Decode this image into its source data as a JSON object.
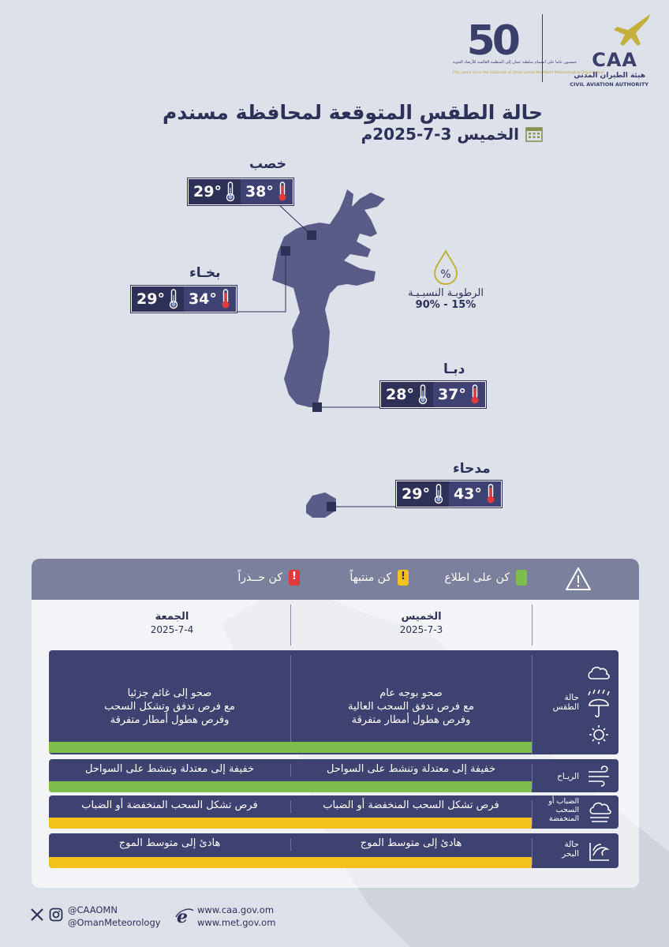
{
  "header": {
    "caa_word": "CAA",
    "caa_arabic": "هيئة الطيران المدني",
    "caa_english": "CIVIL AVIATION AUTHORITY",
    "fifty_number": "50",
    "fifty_arabic": "خمسون عاما على انضمام سلطنة عمان إلى المنظمة العالمية للأرصاد الجوية",
    "fifty_english": "Fifty years since the Sultanate of Oman joined the World Meteorological Organization"
  },
  "title": "حالة الطقس المتوقعة لمحافظة مسندم",
  "date": "الخميس 3-7-2025م",
  "cities": [
    {
      "name": "خصب",
      "max": "38°",
      "min": "29°"
    },
    {
      "name": "بخـاء",
      "max": "34°",
      "min": "29°"
    },
    {
      "name": "دبـا",
      "max": "37°",
      "min": "28°"
    },
    {
      "name": "مدحاء",
      "max": "43°",
      "min": "29°"
    }
  ],
  "humidity": {
    "symbol": "%",
    "label": "الرطوبـة النسبـيـة",
    "value": "90% - 15%"
  },
  "legend": {
    "aware": "كن على اطلاع",
    "alert": "كن منتبهاً",
    "caution": "كن حــذراً"
  },
  "days": [
    {
      "name": "الخميس",
      "date": "2025-7-3"
    },
    {
      "name": "الجمعة",
      "date": "2025-7-4"
    }
  ],
  "rows": {
    "weather": {
      "label": "حالة الطقس",
      "thu": [
        "صحو بوجه عام",
        "مع فرص تدفق السحب العالية",
        "وفرص هطول أمطار متفرقة"
      ],
      "fri": [
        "صحو إلى غائم جزئيا",
        "مع فرص تدفق وتشكل السحب",
        "وفرص هطول أمطار متفرقة"
      ],
      "level": "green"
    },
    "wind": {
      "label": "الريـاح",
      "thu": "خفيفة إلى معتدلة وتنشط على السواحل",
      "fri": "خفيفة إلى معتدلة وتنشط على السواحل",
      "level": "green"
    },
    "fog": {
      "label": "الضباب أو السحب المنخفضة",
      "thu": "فرص تشكل السحب المنخفضة أو الضباب",
      "fri": "فرص تشكل السحب المنخفضة أو الضباب",
      "level": "yellow"
    },
    "sea": {
      "label": "حالة البحر",
      "thu": "هادئ إلى متوسط الموج",
      "fri": "هادئ إلى متوسط الموج",
      "level": "yellow"
    }
  },
  "footer": {
    "handle1": "@CAAOMN",
    "handle2": "@OmanMeteorology",
    "url1": "www.caa.gov.om",
    "url2": "www.met.gov.om"
  },
  "colors": {
    "navy": "#2d3057",
    "row_bg": "#3e4270",
    "green": "#7dbd4b",
    "yellow": "#f2c21a",
    "red": "#e23a3a",
    "background": "#dde1ea"
  }
}
